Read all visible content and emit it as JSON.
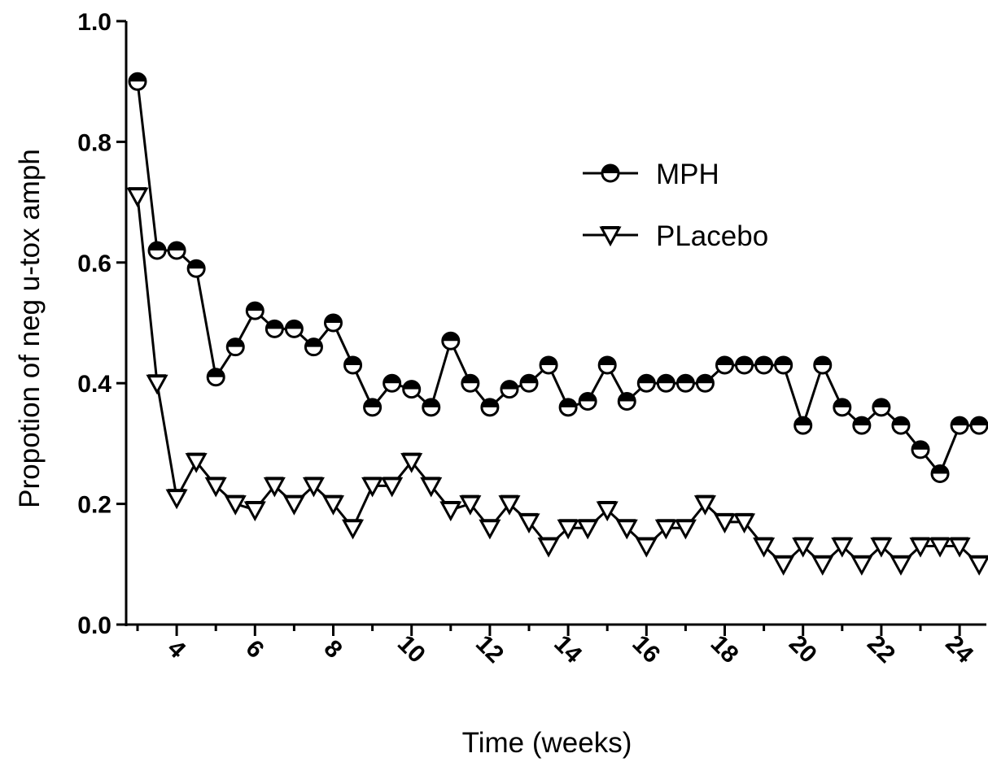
{
  "chart_data": {
    "type": "line",
    "title": "",
    "xlabel": "Time (weeks)",
    "ylabel": "Propotion of neg u-tox amph",
    "xlim": [
      2.5,
      24.5
    ],
    "ylim": [
      0,
      1.0
    ],
    "xticks": [
      4,
      6,
      8,
      10,
      12,
      14,
      16,
      18,
      20,
      22,
      24
    ],
    "yticks": [
      "0.0",
      "0.2",
      "0.4",
      "0.6",
      "0.8",
      "1.0"
    ],
    "grid": false,
    "legend_position": "top-right",
    "series": [
      {
        "name": "MPH",
        "marker": "circle",
        "x": [
          3,
          3.5,
          4,
          4.5,
          5,
          5.5,
          6,
          6.5,
          7,
          7.5,
          8,
          8.5,
          9,
          9.5,
          10,
          10.5,
          11,
          11.5,
          12,
          12.5,
          13,
          13.5,
          14,
          14.5,
          15,
          15.5,
          16,
          16.5,
          17,
          17.5,
          18,
          18.5,
          19,
          19.5,
          20,
          20.5,
          21,
          21.5,
          22,
          22.5,
          23,
          23.5,
          24,
          24.5
        ],
        "values": [
          0.9,
          0.62,
          0.62,
          0.59,
          0.41,
          0.46,
          0.52,
          0.49,
          0.49,
          0.46,
          0.5,
          0.43,
          0.36,
          0.4,
          0.39,
          0.36,
          0.47,
          0.4,
          0.36,
          0.39,
          0.4,
          0.43,
          0.36,
          0.37,
          0.43,
          0.37,
          0.4,
          0.4,
          0.4,
          0.4,
          0.43,
          0.43,
          0.43,
          0.43,
          0.33,
          0.43,
          0.36,
          0.33,
          0.36,
          0.33,
          0.29,
          0.25,
          0.33,
          0.33
        ]
      },
      {
        "name": "PLacebo",
        "marker": "triangle-down",
        "x": [
          3,
          3.5,
          4,
          4.5,
          5,
          5.5,
          6,
          6.5,
          7,
          7.5,
          8,
          8.5,
          9,
          9.5,
          10,
          10.5,
          11,
          11.5,
          12,
          12.5,
          13,
          13.5,
          14,
          14.5,
          15,
          15.5,
          16,
          16.5,
          17,
          17.5,
          18,
          18.5,
          19,
          19.5,
          20,
          20.5,
          21,
          21.5,
          22,
          22.5,
          23,
          23.5,
          24,
          24.5
        ],
        "values": [
          0.71,
          0.4,
          0.21,
          0.27,
          0.23,
          0.2,
          0.19,
          0.23,
          0.2,
          0.23,
          0.2,
          0.16,
          0.23,
          0.23,
          0.27,
          0.23,
          0.19,
          0.2,
          0.16,
          0.2,
          0.17,
          0.13,
          0.16,
          0.16,
          0.19,
          0.16,
          0.13,
          0.16,
          0.16,
          0.2,
          0.17,
          0.17,
          0.13,
          0.1,
          0.13,
          0.1,
          0.13,
          0.1,
          0.13,
          0.1,
          0.13,
          0.13,
          0.13,
          0.1
        ]
      }
    ]
  }
}
